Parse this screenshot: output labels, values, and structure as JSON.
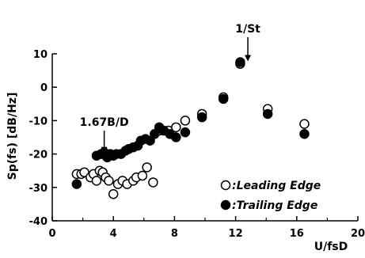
{
  "chart_data": {
    "type": "scatter",
    "xlabel": "U/fsD",
    "ylabel": "Sp(fs)  [dB/Hz]",
    "xlim": [
      0,
      20
    ],
    "ylim": [
      -40,
      10
    ],
    "xticks": [
      "0",
      "4",
      "8",
      "12",
      "16",
      "20"
    ],
    "yticks": [
      "10",
      "0",
      "-10",
      "-20",
      "-30",
      "-40"
    ],
    "grid": false,
    "legend_position": "bottom-right",
    "series": [
      {
        "name": ":Leading Edge",
        "marker": "open-circle",
        "points": [
          [
            1.6,
            -26
          ],
          [
            1.9,
            -26
          ],
          [
            2.1,
            -25.5
          ],
          [
            2.5,
            -27
          ],
          [
            2.7,
            -26
          ],
          [
            2.9,
            -28
          ],
          [
            3.1,
            -25
          ],
          [
            3.3,
            -25.5
          ],
          [
            3.5,
            -27
          ],
          [
            3.7,
            -28
          ],
          [
            4.0,
            -32
          ],
          [
            4.3,
            -29
          ],
          [
            4.6,
            -28
          ],
          [
            4.9,
            -29
          ],
          [
            5.3,
            -28
          ],
          [
            5.5,
            -27
          ],
          [
            5.9,
            -26.5
          ],
          [
            6.2,
            -24
          ],
          [
            6.6,
            -28.5
          ],
          [
            7.0,
            -13
          ],
          [
            7.6,
            -13
          ],
          [
            8.1,
            -12
          ],
          [
            8.7,
            -10
          ],
          [
            9.8,
            -8
          ],
          [
            11.2,
            -3
          ],
          [
            12.3,
            7
          ],
          [
            14.1,
            -6.5
          ],
          [
            16.5,
            -11
          ]
        ]
      },
      {
        "name": ":Trailing Edge",
        "marker": "filled-circle",
        "points": [
          [
            1.6,
            -29
          ],
          [
            2.9,
            -20.5
          ],
          [
            3.2,
            -20
          ],
          [
            3.4,
            -19.5
          ],
          [
            3.6,
            -21
          ],
          [
            3.8,
            -20
          ],
          [
            4.0,
            -20.5
          ],
          [
            4.2,
            -20
          ],
          [
            4.5,
            -20
          ],
          [
            4.8,
            -19
          ],
          [
            5.0,
            -18.5
          ],
          [
            5.3,
            -18
          ],
          [
            5.6,
            -17.5
          ],
          [
            5.8,
            -16
          ],
          [
            6.1,
            -15.5
          ],
          [
            6.4,
            -16
          ],
          [
            6.7,
            -14
          ],
          [
            7.0,
            -12
          ],
          [
            7.3,
            -13
          ],
          [
            7.7,
            -14
          ],
          [
            8.1,
            -15
          ],
          [
            8.7,
            -13.5
          ],
          [
            9.8,
            -9
          ],
          [
            11.2,
            -3.5
          ],
          [
            12.3,
            7.5
          ],
          [
            14.1,
            -8
          ],
          [
            16.5,
            -14
          ]
        ]
      }
    ],
    "annotations": [
      {
        "text": "1.67B/D",
        "arrow_x": 3.4,
        "arrow_y_from": -13,
        "arrow_y_to": -20
      },
      {
        "text": "1/St",
        "arrow_x": 12.8,
        "arrow_y_from": 15,
        "arrow_y_to": 7.5
      }
    ]
  }
}
